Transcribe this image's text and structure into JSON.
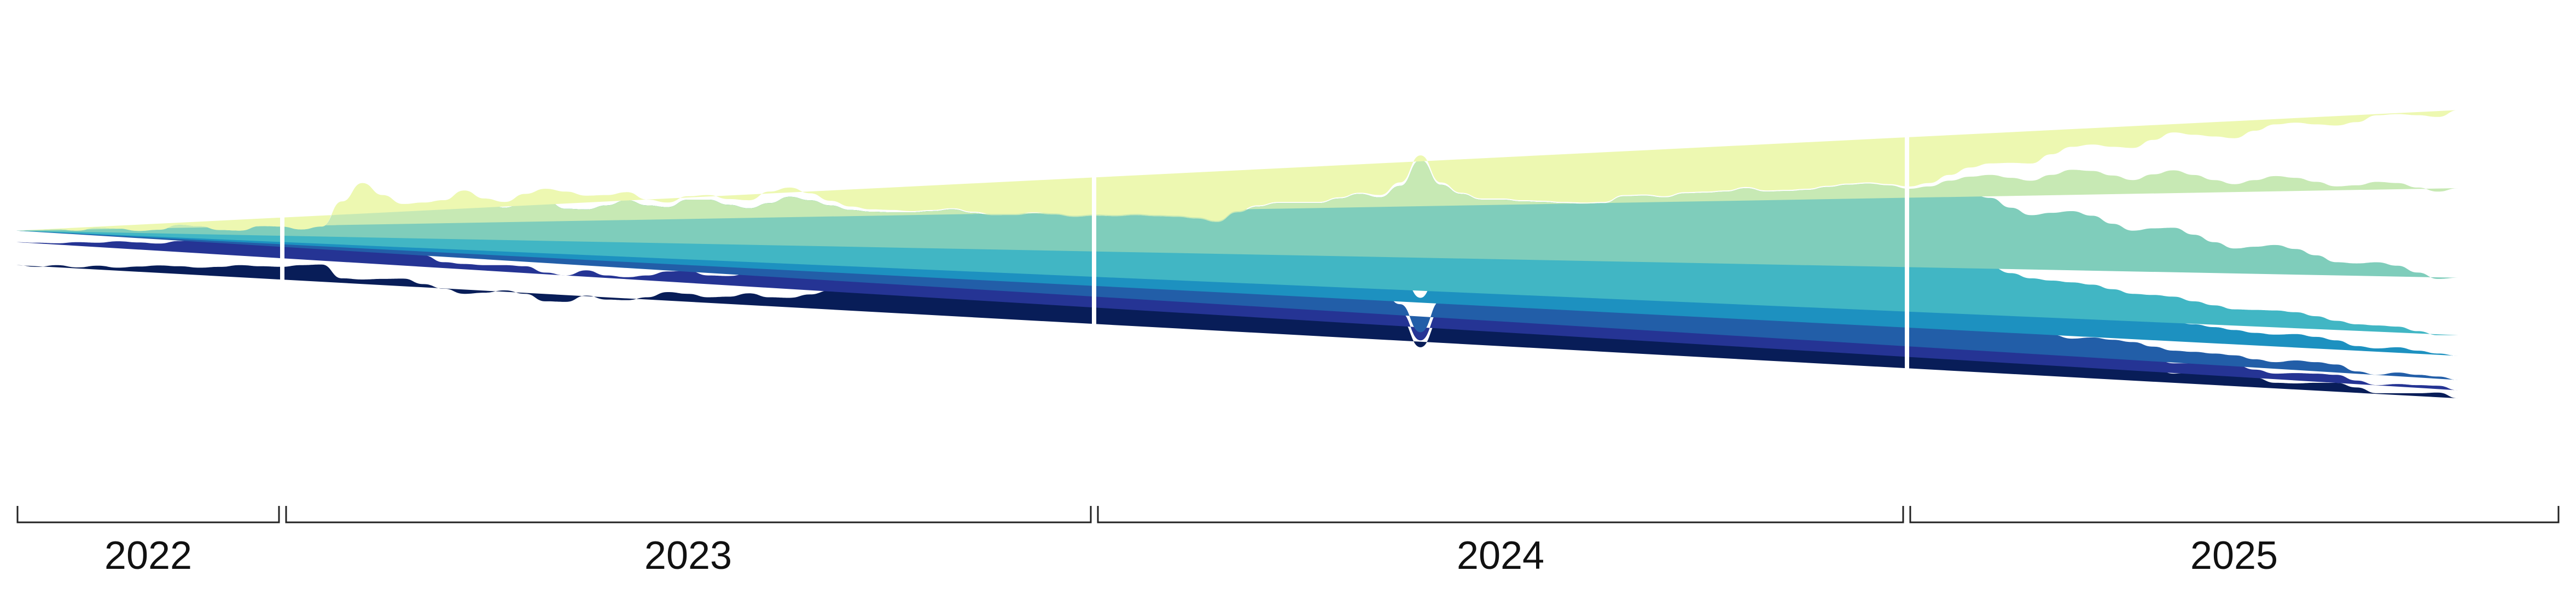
{
  "chart_data": {
    "type": "area",
    "subtype": "streamgraph",
    "title": "",
    "xlabel": "",
    "ylabel": "",
    "grid": false,
    "legend": "none",
    "palette": [
      "#081d58",
      "#253494",
      "#225ea8",
      "#1d91c0",
      "#41b6c4",
      "#7fcdbb",
      "#c7e9b4",
      "#edf8b1"
    ],
    "periods": [
      {
        "label": "2022",
        "start": "2022-09",
        "end": "2022-12"
      },
      {
        "label": "2023",
        "start": "2023-01",
        "end": "2023-12"
      },
      {
        "label": "2024",
        "start": "2024-01",
        "end": "2024-12"
      },
      {
        "label": "2025",
        "start": "2025-01",
        "end": "2025-10"
      }
    ],
    "series": [
      {
        "values": [
          32,
          30,
          34,
          28,
          36,
          31,
          29,
          33,
          40,
          35,
          30,
          32,
          38,
          36,
          34,
          40,
          60,
          90,
          70,
          55,
          48,
          44,
          52,
          40,
          38,
          46,
          42,
          36,
          40,
          34,
          38,
          30,
          34,
          42,
          38,
          32,
          36,
          44,
          50,
          46,
          40,
          34,
          30,
          28,
          26,
          30,
          34,
          28,
          26,
          24,
          30,
          28,
          26,
          24,
          22,
          28,
          30,
          26,
          24,
          22,
          26,
          30,
          28,
          24,
          22,
          26,
          30,
          24,
          22,
          20,
          24,
          28,
          26,
          22,
          20,
          24,
          22,
          20,
          18,
          22,
          24,
          20,
          18,
          16,
          20,
          22,
          18,
          16,
          14,
          18,
          20,
          16,
          14,
          12,
          16,
          18,
          16,
          14,
          12,
          10,
          12,
          14,
          16,
          12,
          10,
          12,
          14,
          12,
          10,
          8,
          10,
          12,
          14,
          12,
          10,
          8,
          10,
          12,
          10,
          8,
          10,
          12,
          10,
          8,
          6,
          8
        ]
      },
      {
        "values": [
          40,
          42,
          38,
          44,
          40,
          46,
          42,
          38,
          44,
          48,
          42,
          40,
          46,
          44,
          40,
          42,
          60,
          70,
          62,
          56,
          50,
          46,
          52,
          48,
          44,
          48,
          50,
          46,
          44,
          42,
          40,
          38,
          36,
          40,
          38,
          36,
          34,
          38,
          40,
          38,
          34,
          30,
          28,
          26,
          24,
          22,
          22,
          20,
          18,
          16,
          14,
          14,
          12,
          12,
          10,
          10,
          10,
          12,
          12,
          10,
          10,
          12,
          14,
          12,
          12,
          14,
          16,
          14,
          12,
          12,
          14,
          16,
          14,
          12,
          12,
          14,
          12,
          12,
          10,
          12,
          14,
          12,
          12,
          10,
          12,
          14,
          12,
          12,
          10,
          12,
          14,
          12,
          12,
          10,
          12,
          14,
          14,
          16,
          14,
          12,
          14,
          16,
          18,
          16,
          14,
          16,
          18,
          16,
          14,
          12,
          14,
          16,
          18,
          16,
          14,
          12,
          14,
          16,
          14,
          12,
          14,
          16,
          14,
          12,
          10,
          12
        ]
      },
      {
        "values": [
          20,
          22,
          24,
          20,
          26,
          22,
          20,
          24,
          28,
          24,
          22,
          20,
          24,
          26,
          22,
          24,
          40,
          50,
          44,
          40,
          46,
          50,
          60,
          54,
          48,
          52,
          56,
          50,
          46,
          52,
          56,
          50,
          46,
          50,
          52,
          48,
          44,
          48,
          50,
          46,
          40,
          36,
          32,
          30,
          28,
          26,
          24,
          22,
          20,
          18,
          16,
          16,
          14,
          14,
          12,
          12,
          12,
          14,
          14,
          12,
          12,
          14,
          16,
          14,
          14,
          16,
          18,
          16,
          14,
          14,
          16,
          18,
          16,
          14,
          14,
          16,
          14,
          14,
          12,
          14,
          16,
          14,
          14,
          12,
          14,
          16,
          14,
          14,
          12,
          14,
          16,
          16,
          18,
          16,
          14,
          16,
          18,
          20,
          18,
          16,
          18,
          20,
          22,
          20,
          18,
          20,
          22,
          20,
          18,
          16,
          18,
          20,
          22,
          20,
          18,
          16,
          18,
          20,
          18,
          16,
          18,
          20,
          18,
          16,
          14,
          16
        ]
      },
      {
        "values": [
          0,
          0,
          0,
          0,
          0,
          0,
          0,
          0,
          0,
          0,
          0,
          0,
          0,
          0,
          0,
          0,
          30,
          40,
          36,
          32,
          40,
          48,
          60,
          56,
          52,
          60,
          70,
          66,
          60,
          70,
          78,
          72,
          66,
          74,
          80,
          76,
          70,
          78,
          86,
          80,
          74,
          70,
          72,
          76,
          80,
          84,
          88,
          86,
          84,
          90,
          94,
          92,
          90,
          96,
          100,
          98,
          92,
          90,
          86,
          80,
          70,
          66,
          62,
          60,
          58,
          60,
          62,
          58,
          56,
          60,
          62,
          60,
          56,
          58,
          62,
          60,
          58,
          56,
          60,
          62,
          58,
          56,
          60,
          64,
          60,
          56,
          54,
          56,
          58,
          56,
          52,
          54,
          56,
          54,
          50,
          52,
          54,
          52,
          50,
          48,
          50,
          52,
          50,
          48,
          46,
          48,
          50,
          48,
          46,
          44,
          46,
          48,
          46,
          44,
          42,
          44,
          46,
          44,
          42,
          40,
          42,
          44,
          42,
          40,
          38,
          40
        ]
      },
      {
        "values": [
          0,
          0,
          0,
          0,
          0,
          0,
          0,
          0,
          0,
          0,
          0,
          0,
          0,
          0,
          0,
          0,
          0,
          0,
          0,
          0,
          0,
          0,
          0,
          0,
          0,
          0,
          0,
          0,
          0,
          0,
          0,
          0,
          0,
          0,
          0,
          0,
          0,
          0,
          0,
          0,
          0,
          0,
          0,
          0,
          0,
          0,
          0,
          0,
          0,
          0,
          0,
          0,
          0,
          0,
          0,
          0,
          0,
          0,
          0,
          0,
          40,
          56,
          70,
          80,
          84,
          90,
          96,
          100,
          150,
          240,
          140,
          100,
          90,
          96,
          88,
          80,
          84,
          76,
          70,
          74,
          68,
          64,
          70,
          66,
          60,
          64,
          58,
          54,
          58,
          56,
          52,
          50,
          48,
          46,
          44,
          46,
          48,
          44,
          42,
          40,
          44,
          46,
          42,
          40,
          38,
          42,
          44,
          40,
          38,
          36,
          40,
          42,
          38,
          36,
          34,
          38,
          40,
          36,
          34,
          32,
          36,
          38,
          40,
          42,
          44,
          46
        ]
      },
      {
        "values": [
          0,
          0,
          0,
          0,
          0,
          0,
          0,
          0,
          0,
          0,
          0,
          0,
          0,
          0,
          0,
          0,
          0,
          0,
          0,
          0,
          0,
          0,
          0,
          0,
          0,
          0,
          0,
          0,
          0,
          0,
          0,
          0,
          0,
          0,
          0,
          0,
          0,
          0,
          0,
          0,
          0,
          0,
          0,
          0,
          0,
          0,
          0,
          0,
          0,
          0,
          0,
          0,
          0,
          0,
          0,
          0,
          0,
          0,
          0,
          0,
          0,
          0,
          0,
          0,
          0,
          0,
          0,
          0,
          0,
          0,
          0,
          0,
          0,
          0,
          0,
          0,
          0,
          10,
          20,
          30,
          36,
          44,
          50,
          58,
          64,
          70,
          74,
          80,
          84,
          90,
          100,
          110,
          100,
          96,
          104,
          110,
          116,
          120,
          114,
          110,
          118,
          124,
          120,
          114,
          110,
          116,
          120,
          116,
          110,
          106,
          110,
          114,
          110,
          106,
          102,
          106,
          110,
          106,
          102,
          98,
          100
        ]
      },
      {
        "values": [
          0,
          0,
          0,
          0,
          0,
          0,
          0,
          0,
          0,
          0,
          0,
          0,
          0,
          0,
          0,
          0,
          0,
          0,
          0,
          0,
          0,
          0,
          0,
          0,
          0,
          0,
          0,
          0,
          0,
          0,
          0,
          0,
          0,
          0,
          0,
          0,
          0,
          0,
          0,
          0,
          0,
          0,
          0,
          0,
          0,
          0,
          0,
          0,
          0,
          0,
          0,
          0,
          0,
          0,
          0,
          0,
          0,
          0,
          0,
          0,
          0,
          0,
          0,
          0,
          0,
          0,
          0,
          0,
          0,
          0,
          0,
          0,
          0,
          0,
          0,
          0,
          0,
          0,
          0,
          0,
          0,
          0,
          0,
          0,
          0,
          0,
          0,
          0,
          0,
          0,
          0,
          0,
          4,
          8,
          12,
          20,
          30,
          40,
          52,
          60,
          66,
          72,
          78,
          84,
          88,
          94,
          100,
          104,
          108,
          112,
          116,
          120,
          124,
          128,
          132,
          136,
          140,
          144,
          148,
          152,
          156,
          160,
          164,
          168,
          172,
          176
        ]
      },
      {
        "values": [
          0,
          0,
          0,
          0,
          0,
          0,
          0,
          0,
          0,
          0,
          0,
          0,
          0,
          0,
          0,
          0,
          4,
          8,
          4,
          2,
          6,
          10,
          8,
          6,
          10,
          14,
          20,
          30,
          24,
          18,
          14,
          10,
          8,
          6,
          8,
          10,
          14,
          20,
          16,
          12,
          8,
          6,
          4,
          4,
          2,
          2,
          2,
          2,
          2,
          2,
          2,
          2,
          2,
          2,
          2,
          2,
          2,
          2,
          2,
          2,
          2,
          2,
          2,
          2,
          2,
          2,
          2,
          4,
          6,
          8,
          4,
          2,
          2,
          2,
          2,
          2,
          2,
          2,
          2,
          2,
          2,
          2,
          2,
          2,
          2,
          2,
          2,
          2,
          2,
          2,
          2,
          2,
          2,
          4,
          6,
          10,
          16,
          20,
          26,
          30,
          36,
          40,
          46,
          50,
          56,
          60,
          66,
          70,
          76,
          80,
          86,
          90,
          96,
          100,
          106,
          110,
          116,
          120,
          126,
          130,
          136,
          140,
          146,
          150,
          156,
          160
        ]
      }
    ]
  }
}
